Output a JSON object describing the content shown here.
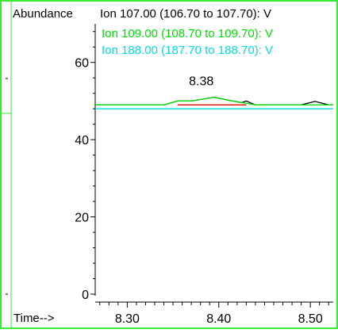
{
  "chart_data": {
    "type": "line",
    "ylabel": "Abundance",
    "xlabel": "Time-->",
    "xlim": [
      8.265,
      8.525
    ],
    "ylim": [
      0,
      70
    ],
    "x_ticks": [
      "8.30",
      "8.40",
      "8.50"
    ],
    "y_ticks": [
      "0",
      "20",
      "40",
      "60"
    ],
    "series": [
      {
        "name": "Ion 107.00 (106.70 to 107.70): V",
        "color": "#000000",
        "x": [
          8.265,
          8.34,
          8.355,
          8.37,
          8.395,
          8.415,
          8.425,
          8.43,
          8.44,
          8.49,
          8.505,
          8.52,
          8.525
        ],
        "y": [
          49,
          49,
          50,
          50,
          51,
          50,
          49.6,
          50,
          49,
          49,
          49.9,
          49,
          49
        ]
      },
      {
        "name": "Ion 109.00 (108.70 to 109.70): V",
        "color": "#00e000",
        "x": [
          8.265,
          8.34,
          8.355,
          8.37,
          8.395,
          8.415,
          8.44,
          8.525
        ],
        "y": [
          49,
          49,
          50,
          50,
          51,
          50,
          49,
          49
        ]
      },
      {
        "name": "Ion 188.00 (187.70 to 188.70): V",
        "color": "#00dddd",
        "x": [
          8.265,
          8.525
        ],
        "y": [
          48,
          48
        ]
      },
      {
        "name": "",
        "color": "#e00000",
        "x": [
          8.355,
          8.43
        ],
        "y": [
          49,
          49
        ]
      }
    ],
    "annotations": [
      {
        "text": "8.38",
        "x": 8.38,
        "y": 52
      }
    ],
    "frame_color": "#33ee33",
    "grid": false
  }
}
